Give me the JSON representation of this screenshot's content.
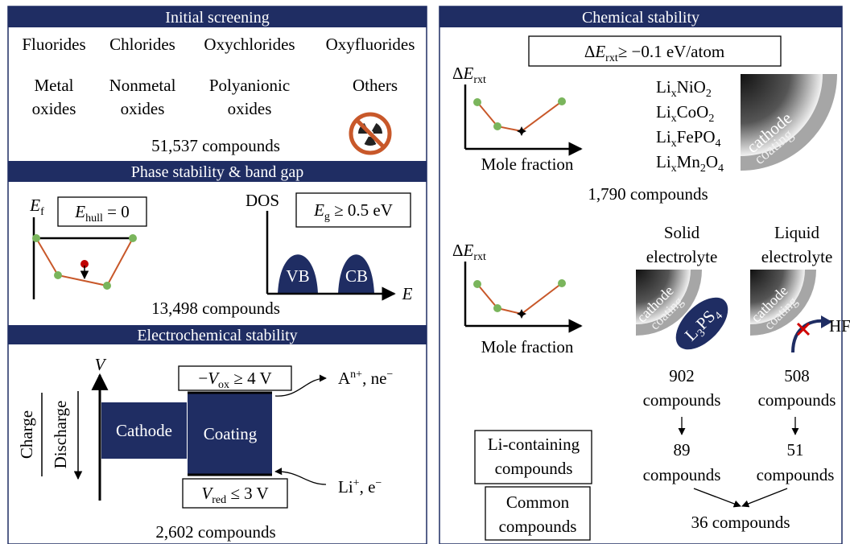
{
  "initial_screening": {
    "title": "Initial screening",
    "halides": [
      "Fluorides",
      "Chlorides",
      "Oxychlorides",
      "Oxyfluorides"
    ],
    "oxides": [
      [
        "Metal",
        "oxides"
      ],
      [
        "Nonmetal",
        "oxides"
      ],
      [
        "Polyanionic",
        "oxides"
      ],
      [
        "Others"
      ]
    ],
    "count": "51,537 compounds"
  },
  "phase_stability": {
    "title": "Phase stability & band gap",
    "formation_axis": [
      "E",
      "f"
    ],
    "hull_criterion": [
      "E",
      "hull",
      " = 0"
    ],
    "dos_axis": "DOS",
    "gap_criterion": [
      "E",
      "g",
      " ≥ 0.5 eV"
    ],
    "valence_band": "VB",
    "conduction_band": "CB",
    "energy_axis": "E",
    "count": "13,498 compounds"
  },
  "electrochemical_stability": {
    "title": "Electrochemical stability",
    "voltage_axis": "V",
    "oxidation_criterion": [
      "−",
      "V",
      "ox",
      " ≥ 4 V"
    ],
    "oxidation_products": [
      "A",
      "n+",
      ", ne",
      "−"
    ],
    "charge": "Charge",
    "discharge": "Discharge",
    "cathode": "Cathode",
    "coating": "Coating",
    "reduction_criterion": [
      "V",
      "red",
      " ≤ 3 V"
    ],
    "reduction_reactants": [
      "Li",
      "+",
      ", e",
      "−"
    ],
    "count": "2,602 compounds"
  },
  "chemical_stability": {
    "title": "Chemical stability",
    "criterion": [
      "Δ",
      "E",
      "rxt",
      "≥ −0.1 eV/atom"
    ],
    "plots": [
      {
        "y_axis": [
          "Δ",
          "E",
          "rxt"
        ],
        "x_axis": "Mole fraction"
      },
      {
        "y_axis": [
          "Δ",
          "E",
          "rxt"
        ],
        "x_axis": "Mole fraction"
      }
    ],
    "cathodes": [
      [
        "Li",
        "x",
        "NiO",
        "2"
      ],
      [
        "Li",
        "x",
        "CoO",
        "2"
      ],
      [
        "Li",
        "x",
        "FePO",
        "4"
      ],
      [
        "Li",
        "x",
        "Mn",
        "2",
        "O",
        "4"
      ]
    ],
    "cathode_label": "cathode",
    "coating_label": "coating",
    "count": "1,790 compounds",
    "electrolytes": [
      {
        "name": [
          "Solid",
          "electrolyte"
        ],
        "cathode_label": "cathode",
        "coating_label": "coating",
        "count": [
          "902",
          "compounds"
        ],
        "filtered": [
          "89",
          "compounds"
        ]
      },
      {
        "name": [
          "Liquid",
          "electrolyte"
        ],
        "cathode_label": "cathode",
        "coating_label": "coating",
        "count": [
          "508",
          "compounds"
        ],
        "filtered": [
          "51",
          "compounds"
        ]
      }
    ],
    "sulfide": [
      "L",
      "3",
      "PS",
      "4"
    ],
    "acid": "HF",
    "filters": [
      [
        "Li-containing",
        "compounds"
      ],
      [
        "Common",
        "compounds"
      ]
    ],
    "final_count": "36 compounds"
  }
}
